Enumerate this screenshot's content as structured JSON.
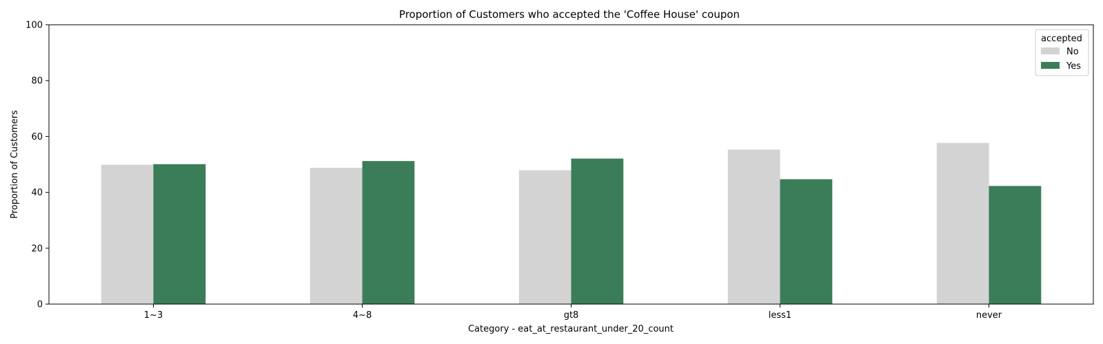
{
  "chart_data": {
    "type": "bar",
    "title": "Proportion of Customers who accepted the 'Coffee House' coupon",
    "xlabel": "Category - eat_at_restaurant_under_20_count",
    "ylabel": "Proportion of Customers",
    "categories": [
      "1~3",
      "4~8",
      "gt8",
      "less1",
      "never"
    ],
    "series": [
      {
        "name": "No",
        "color": "#d3d3d3",
        "values": [
          49.9,
          48.8,
          47.9,
          55.3,
          57.7
        ]
      },
      {
        "name": "Yes",
        "color": "#3b7d58",
        "values": [
          50.1,
          51.2,
          52.1,
          44.7,
          42.3
        ]
      }
    ],
    "ylim": [
      0,
      100
    ],
    "yticks": [
      0,
      20,
      40,
      60,
      80,
      100
    ],
    "grid": false,
    "legend": {
      "title": "accepted",
      "position": "top-right"
    }
  }
}
